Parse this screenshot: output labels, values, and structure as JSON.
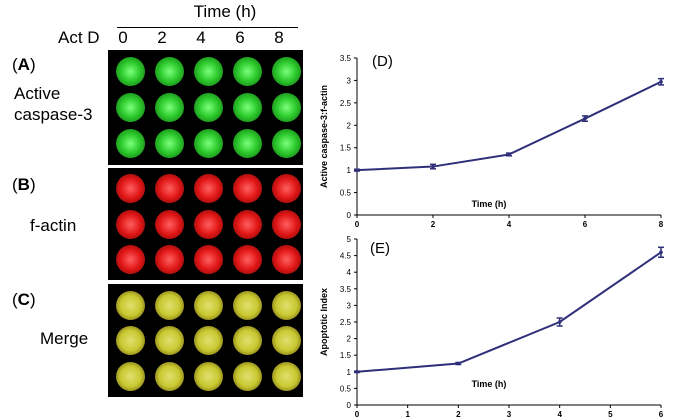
{
  "figure": {
    "time_header": "Time (h)",
    "act_d_label": "Act D",
    "time_ticks": [
      "0",
      "2",
      "4",
      "6",
      "8"
    ],
    "panels": [
      {
        "letter": "A",
        "label_lines": [
          "Active",
          "caspase-3"
        ],
        "color": "#2ecc2e"
      },
      {
        "letter": "B",
        "label_lines": [
          "f-actin"
        ],
        "color": "#e01515"
      },
      {
        "letter": "C",
        "label_lines": [
          "Merge"
        ],
        "color": "#c8c830"
      }
    ]
  },
  "chart_data": [
    {
      "type": "line",
      "letter": "D",
      "xlabel": "Time (h)",
      "ylabel": "Active caspase-3:f-actin",
      "x": [
        0,
        2,
        4,
        6,
        8
      ],
      "y": [
        1.0,
        1.08,
        1.35,
        2.15,
        2.97
      ],
      "error": [
        0.02,
        0.05,
        0.03,
        0.06,
        0.07
      ],
      "xlim": [
        0,
        8
      ],
      "ylim": [
        0,
        3.5
      ],
      "xticks": [
        "0",
        "2",
        "4",
        "6",
        "8"
      ],
      "yticks": [
        "0",
        "0.5",
        "1",
        "1.5",
        "2",
        "2.5",
        "3",
        "3.5"
      ],
      "line_color": "#2f2f7a"
    },
    {
      "type": "line",
      "letter": "E",
      "xlabel": "Time (h)",
      "ylabel": "Apoptotic Index",
      "x": [
        0,
        2,
        4,
        6
      ],
      "y": [
        1.0,
        1.25,
        2.5,
        4.6
      ],
      "error": [
        0.02,
        0.03,
        0.12,
        0.15
      ],
      "xlim": [
        0,
        6
      ],
      "ylim": [
        0,
        5
      ],
      "xticks": [
        "0",
        "1",
        "2",
        "3",
        "4",
        "5",
        "6"
      ],
      "yticks": [
        "0",
        "0.5",
        "1",
        "1.5",
        "2",
        "2.5",
        "3",
        "3.5",
        "4",
        "4.5",
        "5"
      ],
      "line_color": "#2f2f7a"
    }
  ]
}
